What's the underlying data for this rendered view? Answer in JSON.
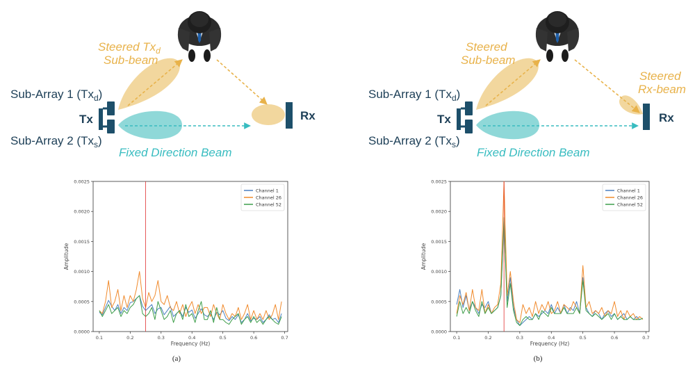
{
  "colors": {
    "tx_beam": "#f2d79e",
    "fixed_beam": "#8fd8d8",
    "steered_text": "#e8b24a",
    "fixed_text": "#38bcc0",
    "antenna": "#1d4f6a",
    "dark_text": "#1d3f57",
    "channel_1": "#4a7fc0",
    "channel_26": "#f08a2c",
    "channel_52": "#3e9e4a",
    "marker_line": "#e03030"
  },
  "icons": [
    "person-top-view-icon",
    "tx-antenna-icon",
    "rx-antenna-icon"
  ],
  "panels": [
    {
      "steered_tx_label_line1": "Steered Tx",
      "steered_tx_label_sub": "d",
      "steered_tx_label_line2": "Sub-beam",
      "sub_array_1": "Sub-Array 1 (Tx",
      "sub_array_1_sub": "d",
      "sub_array_2": "Sub-Array 2 (Tx",
      "sub_array_2_sub": "s",
      "close_paren": ")",
      "tx_label": "Tx",
      "rx_label": "Rx",
      "fixed_beam_label": "Fixed Direction Beam",
      "caption": "(a)"
    },
    {
      "steered_tx_label_line1": "Steered",
      "steered_tx_label_line2": "Sub-beam",
      "steered_rx_label_line1": "Steered",
      "steered_rx_label_line2": "Rx-beam",
      "sub_array_1": "Sub-Array 1 (Tx",
      "sub_array_1_sub": "d",
      "sub_array_2": "Sub-Array 2 (Tx",
      "sub_array_2_sub": "s",
      "close_paren": ")",
      "tx_label": "Tx",
      "rx_label": "Rx",
      "fixed_beam_label": "Fixed Direction Beam",
      "caption": "(b)"
    }
  ],
  "chart_data": [
    {
      "type": "line",
      "xlabel": "Frequency (Hz)",
      "ylabel": "Amplitude",
      "xlim": [
        0.08,
        0.71
      ],
      "ylim": [
        0,
        0.0025
      ],
      "xticks": [
        "0.1",
        "0.2",
        "0.3",
        "0.4",
        "0.5",
        "0.6",
        "0.7"
      ],
      "yticks": [
        "0.0000",
        "0.0005",
        "0.0010",
        "0.0015",
        "0.0020",
        "0.0025"
      ],
      "vline": 0.25,
      "legend_position": "top-right",
      "x": [
        0.1,
        0.11,
        0.12,
        0.13,
        0.14,
        0.15,
        0.16,
        0.17,
        0.18,
        0.19,
        0.2,
        0.21,
        0.22,
        0.23,
        0.24,
        0.25,
        0.26,
        0.27,
        0.28,
        0.29,
        0.3,
        0.31,
        0.32,
        0.33,
        0.34,
        0.35,
        0.36,
        0.37,
        0.38,
        0.39,
        0.4,
        0.41,
        0.42,
        0.43,
        0.44,
        0.45,
        0.46,
        0.47,
        0.48,
        0.49,
        0.5,
        0.51,
        0.52,
        0.53,
        0.54,
        0.55,
        0.56,
        0.57,
        0.58,
        0.59,
        0.6,
        0.61,
        0.62,
        0.63,
        0.64,
        0.65,
        0.66,
        0.67,
        0.68,
        0.69
      ],
      "series": [
        {
          "name": "Channel 1",
          "values": [
            0.00032,
            0.00028,
            0.0004,
            0.00052,
            0.00042,
            0.00035,
            0.00045,
            0.0003,
            0.0004,
            0.00035,
            0.00048,
            0.0005,
            0.00055,
            0.0006,
            0.00042,
            0.00035,
            0.0004,
            0.00045,
            0.0003,
            0.00038,
            0.0004,
            0.00028,
            0.00035,
            0.00042,
            0.00025,
            0.0003,
            0.00035,
            0.00025,
            0.0004,
            0.00032,
            0.00036,
            0.00022,
            0.0003,
            0.00038,
            0.00028,
            0.00025,
            0.0003,
            0.0002,
            0.00032,
            0.00028,
            0.00035,
            0.00022,
            0.00018,
            0.00025,
            0.0002,
            0.00028,
            0.00015,
            0.0002,
            0.0003,
            0.00018,
            0.00022,
            0.0002,
            0.00025,
            0.00015,
            0.0002,
            0.00028,
            0.0002,
            0.00022,
            0.00015,
            0.0003
          ]
        },
        {
          "name": "Channel 26",
          "values": [
            0.00035,
            0.0003,
            0.0005,
            0.00085,
            0.0004,
            0.0005,
            0.0007,
            0.00035,
            0.0006,
            0.0004,
            0.0006,
            0.0005,
            0.0007,
            0.001,
            0.00055,
            0.0004,
            0.00065,
            0.0005,
            0.0006,
            0.00085,
            0.0005,
            0.00045,
            0.0006,
            0.0004,
            0.00035,
            0.0005,
            0.0003,
            0.00045,
            0.00025,
            0.0004,
            0.0005,
            0.0003,
            0.00045,
            0.0003,
            0.0004,
            0.0004,
            0.00025,
            0.00045,
            0.0003,
            0.0002,
            0.00045,
            0.0003,
            0.0002,
            0.0003,
            0.00025,
            0.0004,
            0.0002,
            0.0003,
            0.00045,
            0.0002,
            0.00035,
            0.0002,
            0.0003,
            0.0002,
            0.00035,
            0.0002,
            0.00028,
            0.00045,
            0.0002,
            0.0005
          ]
        },
        {
          "name": "Channel 52",
          "values": [
            0.00035,
            0.00025,
            0.00035,
            0.00045,
            0.0003,
            0.00035,
            0.0004,
            0.00025,
            0.00035,
            0.0003,
            0.0004,
            0.00045,
            0.00055,
            0.0006,
            0.0003,
            0.00025,
            0.0003,
            0.0004,
            0.0002,
            0.0005,
            0.00035,
            0.0002,
            0.00025,
            0.00035,
            0.00015,
            0.0003,
            0.00035,
            0.0002,
            0.00045,
            0.00025,
            0.0003,
            0.00015,
            0.00035,
            0.0005,
            0.0002,
            0.0002,
            0.00035,
            0.00015,
            0.0004,
            0.0002,
            0.0002,
            0.00015,
            0.00012,
            0.0002,
            0.00025,
            0.0003,
            0.00012,
            0.0002,
            0.00025,
            0.00015,
            0.00025,
            0.00015,
            0.0002,
            0.00012,
            0.0002,
            0.00025,
            0.0002,
            0.00015,
            0.00012,
            0.00025
          ]
        }
      ]
    },
    {
      "type": "line",
      "xlabel": "Frequency (Hz)",
      "ylabel": "Amplitude",
      "xlim": [
        0.08,
        0.71
      ],
      "ylim": [
        0,
        0.0025
      ],
      "xticks": [
        "0.1",
        "0.2",
        "0.3",
        "0.4",
        "0.5",
        "0.6",
        "0.7"
      ],
      "yticks": [
        "0.0000",
        "0.0005",
        "0.0010",
        "0.0015",
        "0.0020",
        "0.0025"
      ],
      "vline": 0.25,
      "legend_position": "top-right",
      "x": [
        0.1,
        0.11,
        0.12,
        0.13,
        0.14,
        0.15,
        0.16,
        0.17,
        0.18,
        0.19,
        0.2,
        0.21,
        0.22,
        0.23,
        0.24,
        0.25,
        0.26,
        0.27,
        0.28,
        0.29,
        0.3,
        0.31,
        0.32,
        0.33,
        0.34,
        0.35,
        0.36,
        0.37,
        0.38,
        0.39,
        0.4,
        0.41,
        0.42,
        0.43,
        0.44,
        0.45,
        0.46,
        0.47,
        0.48,
        0.49,
        0.5,
        0.51,
        0.52,
        0.53,
        0.54,
        0.55,
        0.56,
        0.57,
        0.58,
        0.59,
        0.6,
        0.61,
        0.62,
        0.63,
        0.64,
        0.65,
        0.66,
        0.67,
        0.68,
        0.69
      ],
      "series": [
        {
          "name": "Channel 1",
          "values": [
            0.00045,
            0.0007,
            0.0004,
            0.0006,
            0.00035,
            0.0005,
            0.0004,
            0.0003,
            0.00045,
            0.0004,
            0.0005,
            0.0003,
            0.00035,
            0.0004,
            0.0006,
            0.0018,
            0.0005,
            0.0009,
            0.0004,
            0.0002,
            0.0001,
            0.00015,
            0.0002,
            0.00025,
            0.0002,
            0.0003,
            0.00025,
            0.0003,
            0.00035,
            0.0003,
            0.00045,
            0.0003,
            0.0004,
            0.0003,
            0.00045,
            0.0003,
            0.0004,
            0.00035,
            0.0005,
            0.0003,
            0.0009,
            0.0004,
            0.0003,
            0.00025,
            0.00035,
            0.0003,
            0.0002,
            0.0003,
            0.00035,
            0.00025,
            0.0003,
            0.0002,
            0.00025,
            0.0003,
            0.0002,
            0.00025,
            0.0002,
            0.00025,
            0.0002,
            0.00022
          ]
        },
        {
          "name": "Channel 26",
          "values": [
            0.0003,
            0.0006,
            0.00045,
            0.00065,
            0.00035,
            0.0007,
            0.0004,
            0.00035,
            0.0007,
            0.0003,
            0.00045,
            0.0003,
            0.0004,
            0.00045,
            0.0008,
            0.0025,
            0.0006,
            0.001,
            0.0005,
            0.0002,
            0.00015,
            0.00045,
            0.0003,
            0.0004,
            0.00025,
            0.0005,
            0.0003,
            0.00045,
            0.00035,
            0.0005,
            0.0003,
            0.00035,
            0.0005,
            0.0003,
            0.00045,
            0.0004,
            0.00035,
            0.0005,
            0.0004,
            0.0003,
            0.0011,
            0.0004,
            0.0005,
            0.0003,
            0.00035,
            0.0003,
            0.0004,
            0.00025,
            0.00035,
            0.0003,
            0.0005,
            0.00025,
            0.00035,
            0.0002,
            0.00035,
            0.00025,
            0.0003,
            0.0002,
            0.00025,
            0.0002
          ]
        },
        {
          "name": "Channel 52",
          "values": [
            0.00025,
            0.0005,
            0.0003,
            0.0004,
            0.0003,
            0.0005,
            0.00035,
            0.00025,
            0.0005,
            0.0003,
            0.0004,
            0.0003,
            0.00035,
            0.0004,
            0.0006,
            0.0019,
            0.0004,
            0.0008,
            0.00035,
            0.00015,
            0.0001,
            0.0002,
            0.00025,
            0.0002,
            0.0002,
            0.0003,
            0.0002,
            0.00035,
            0.0003,
            0.00025,
            0.0004,
            0.0003,
            0.0003,
            0.0003,
            0.0004,
            0.0003,
            0.0003,
            0.0003,
            0.0004,
            0.0003,
            0.00085,
            0.00035,
            0.0003,
            0.00025,
            0.0003,
            0.00025,
            0.0002,
            0.00025,
            0.0003,
            0.0002,
            0.0003,
            0.0002,
            0.00025,
            0.0002,
            0.0002,
            0.00025,
            0.0002,
            0.0002,
            0.0002,
            0.00022
          ]
        }
      ]
    }
  ]
}
